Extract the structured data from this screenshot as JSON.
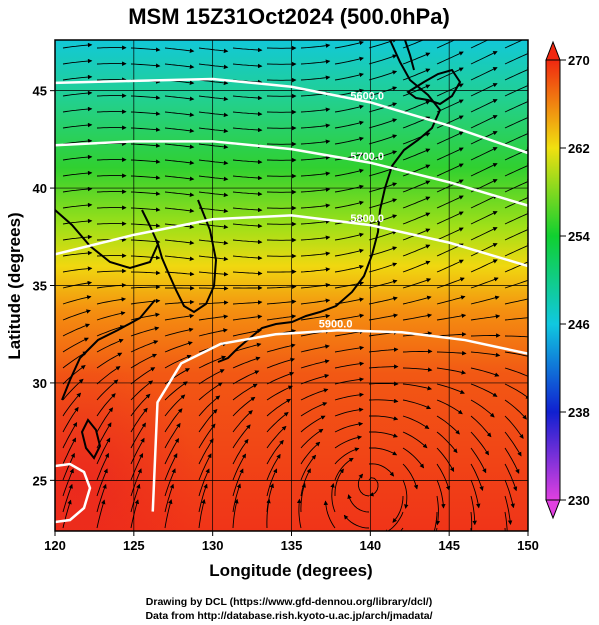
{
  "title": "MSM 15Z31Oct2024 (500.0hPa)",
  "credits": [
    "Drawing by DCL (https://www.gfd-dennou.org/library/dcl/)",
    "Data from http://database.rish.kyoto-u.ac.jp/arch/jmadata/"
  ],
  "chart_data": {
    "type": "heatmap",
    "xlabel": "Longitude (degrees)",
    "ylabel": "Latitude  (degrees)",
    "xlim": [
      120,
      150
    ],
    "ylim": [
      22.4,
      47.6
    ],
    "xticks": [
      120,
      125,
      130,
      135,
      140,
      145,
      150
    ],
    "yticks": [
      25,
      30,
      35,
      40,
      45
    ],
    "grid": true,
    "colorbar": {
      "min": 230,
      "max": 270,
      "ticks": [
        230,
        238,
        246,
        254,
        262,
        270
      ],
      "colors": [
        "#e040e0",
        "#1020d0",
        "#10c8e0",
        "#10d030",
        "#f0e010",
        "#f02810"
      ]
    },
    "contours": [
      {
        "label": "5600.0",
        "lon": [
          120,
          125,
          130,
          135,
          140,
          145,
          150
        ],
        "lat": [
          45.4,
          45.5,
          45.6,
          45.2,
          44.4,
          43.2,
          41.8
        ]
      },
      {
        "label": "5700.0",
        "lon": [
          120,
          125,
          130,
          135,
          140,
          145,
          150
        ],
        "lat": [
          42.2,
          42.4,
          42.4,
          42.0,
          41.3,
          40.3,
          39.1
        ]
      },
      {
        "label": "5800.0",
        "lon": [
          120,
          125,
          130,
          135,
          140,
          145,
          150
        ],
        "lat": [
          36.6,
          37.6,
          38.4,
          38.6,
          38.1,
          37.2,
          36.0
        ]
      },
      {
        "label": "5900.0",
        "lon": [
          126.2,
          126.5,
          128,
          130.5,
          134,
          138,
          142,
          146,
          150
        ],
        "lat": [
          23.4,
          29.0,
          31.0,
          32.0,
          32.5,
          32.7,
          32.6,
          32.2,
          31.5
        ]
      }
    ],
    "features": {
      "anticyclone_center": [
        140,
        25.0
      ]
    }
  }
}
